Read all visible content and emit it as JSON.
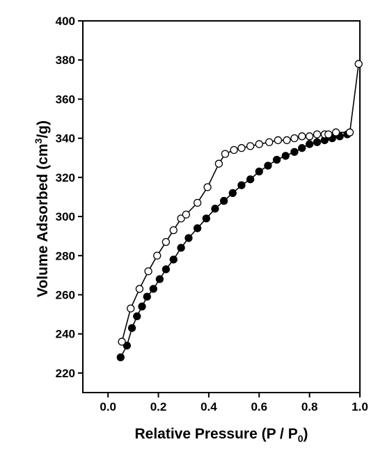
{
  "chart_data": {
    "type": "line",
    "title": "",
    "xlabel": "Relative Pressure (P / P",
    "xlabel_sub": "0",
    "xlabel_close": ")",
    "ylabel": "Volume Adsorbed (cm",
    "ylabel_sup": "3",
    "ylabel_close": "/g)",
    "xlim": [
      -0.1,
      1.0
    ],
    "ylim": [
      210,
      400
    ],
    "xticks": [
      "0.0",
      "0.2",
      "0.4",
      "0.6",
      "0.8",
      "1.0"
    ],
    "yticks": [
      "220",
      "240",
      "260",
      "280",
      "300",
      "320",
      "340",
      "360",
      "380",
      "400"
    ],
    "grid": false,
    "legend": "none",
    "series": [
      {
        "marker": "filled-circle",
        "color": "#000000",
        "x": [
          0.05,
          0.075,
          0.095,
          0.115,
          0.135,
          0.155,
          0.18,
          0.205,
          0.23,
          0.26,
          0.29,
          0.32,
          0.355,
          0.39,
          0.425,
          0.46,
          0.495,
          0.53,
          0.565,
          0.6,
          0.635,
          0.67,
          0.705,
          0.74,
          0.77,
          0.8,
          0.83,
          0.86,
          0.89,
          0.92,
          0.95
        ],
        "y": [
          228,
          234,
          243,
          249,
          254,
          259,
          263,
          268,
          273,
          278,
          284,
          289,
          294,
          299,
          304,
          308,
          312,
          316,
          319,
          323,
          326,
          329,
          331,
          333,
          335,
          337,
          338,
          339,
          340,
          341,
          342
        ]
      },
      {
        "marker": "open-circle",
        "color": "#000000",
        "x": [
          0.055,
          0.09,
          0.125,
          0.16,
          0.195,
          0.23,
          0.26,
          0.29,
          0.31,
          0.355,
          0.395,
          0.44,
          0.465,
          0.5,
          0.53,
          0.565,
          0.6,
          0.64,
          0.675,
          0.71,
          0.74,
          0.77,
          0.8,
          0.83,
          0.86,
          0.875,
          0.905,
          0.96,
          0.995
        ],
        "y": [
          236,
          253,
          263,
          272,
          280,
          287,
          293,
          299,
          301,
          307,
          315,
          327,
          332,
          334,
          335,
          336,
          337,
          338,
          339,
          339,
          340,
          341,
          341,
          342,
          342,
          342,
          343,
          343,
          378
        ]
      }
    ]
  }
}
